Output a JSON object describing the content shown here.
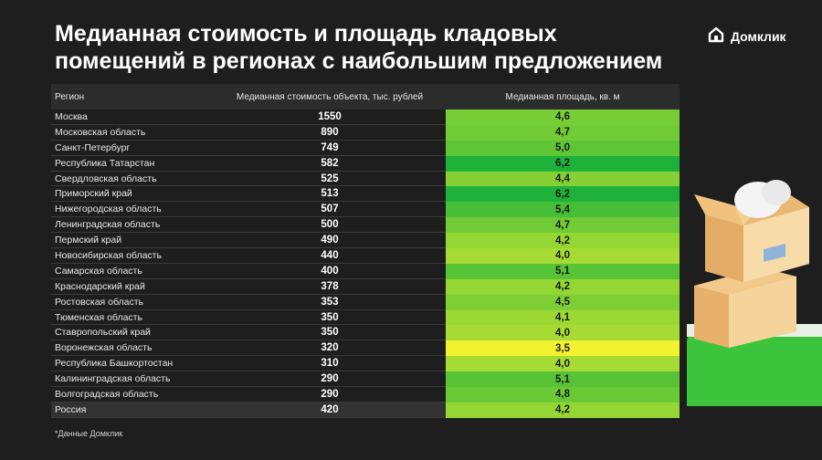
{
  "title": "Медианная стоимость и площадь кладовых\nпомещений в регионах с наибольшим предложением",
  "brand": "Домклик",
  "footnote": "*Данные Домклик",
  "colors": {
    "background": "#1e1e1e",
    "scale_low": "#f2f230",
    "scale_high": "#1fb23a"
  },
  "chart_data": {
    "type": "table",
    "columns": [
      "Регион",
      "Медианная стоимость объекта, тыс. рублей",
      "Медианная площадь, кв. м"
    ],
    "rows": [
      {
        "region": "Москва",
        "cost": "1550",
        "area": "4,6",
        "area_value": 4.6
      },
      {
        "region": "Московская область",
        "cost": "890",
        "area": "4,7",
        "area_value": 4.7
      },
      {
        "region": "Санкт-Петербург",
        "cost": "749",
        "area": "5,0",
        "area_value": 5.0
      },
      {
        "region": "Республика Татарстан",
        "cost": "582",
        "area": "6,2",
        "area_value": 6.2
      },
      {
        "region": "Свердловская область",
        "cost": "525",
        "area": "4,4",
        "area_value": 4.4
      },
      {
        "region": "Приморский край",
        "cost": "513",
        "area": "6,2",
        "area_value": 6.2
      },
      {
        "region": "Нижегородская область",
        "cost": "507",
        "area": "5,4",
        "area_value": 5.4
      },
      {
        "region": "Ленинградская область",
        "cost": "500",
        "area": "4,7",
        "area_value": 4.7
      },
      {
        "region": "Пермский край",
        "cost": "490",
        "area": "4,2",
        "area_value": 4.2
      },
      {
        "region": "Новосибирская область",
        "cost": "440",
        "area": "4,0",
        "area_value": 4.0
      },
      {
        "region": "Самарская область",
        "cost": "400",
        "area": "5,1",
        "area_value": 5.1
      },
      {
        "region": "Краснодарский край",
        "cost": "378",
        "area": "4,2",
        "area_value": 4.2
      },
      {
        "region": "Ростовская область",
        "cost": "353",
        "area": "4,5",
        "area_value": 4.5
      },
      {
        "region": "Тюменская область",
        "cost": "350",
        "area": "4,1",
        "area_value": 4.1
      },
      {
        "region": "Ставропольский край",
        "cost": "350",
        "area": "4,0",
        "area_value": 4.0
      },
      {
        "region": "Воронежская область",
        "cost": "320",
        "area": "3,5",
        "area_value": 3.5
      },
      {
        "region": "Республика Башкортостан",
        "cost": "310",
        "area": "4,0",
        "area_value": 4.0
      },
      {
        "region": "Калининградская область",
        "cost": "290",
        "area": "5,1",
        "area_value": 5.1
      },
      {
        "region": "Волгоградская область",
        "cost": "290",
        "area": "4,8",
        "area_value": 4.8
      },
      {
        "region": "Россия",
        "cost": "420",
        "area": "4,2",
        "area_value": 4.2
      }
    ]
  }
}
